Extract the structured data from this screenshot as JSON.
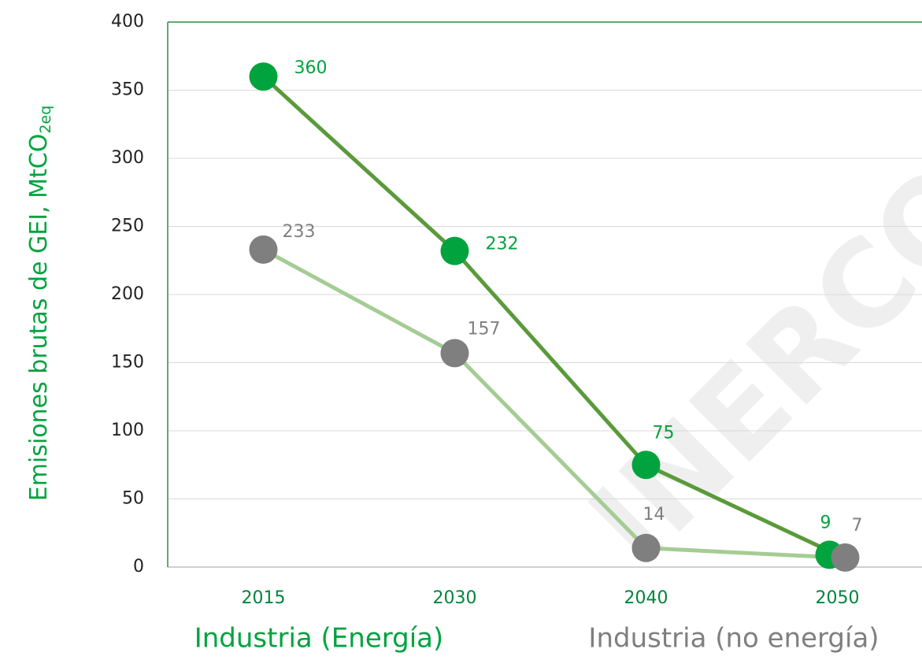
{
  "chart_data": {
    "type": "line",
    "y_label": {
      "text": "Emisiones brutas de GEI, MtCO",
      "subscript": "2eq"
    },
    "categories": [
      "2015",
      "2030",
      "2040",
      "2050"
    ],
    "series": [
      {
        "name": "Industria (Energía)",
        "color": "#00a33e",
        "line_color": "#5a9a3a",
        "values": [
          360,
          232,
          75,
          9
        ]
      },
      {
        "name": "Industria (no energía)",
        "color": "#7f7f7f",
        "line_color": "#a5cc94",
        "values": [
          233,
          157,
          14,
          7
        ]
      }
    ],
    "ylim": [
      0,
      400
    ],
    "yticks": [
      0,
      50,
      100,
      150,
      200,
      250,
      300,
      350,
      400
    ],
    "grid": true,
    "watermark": "INERCO"
  }
}
